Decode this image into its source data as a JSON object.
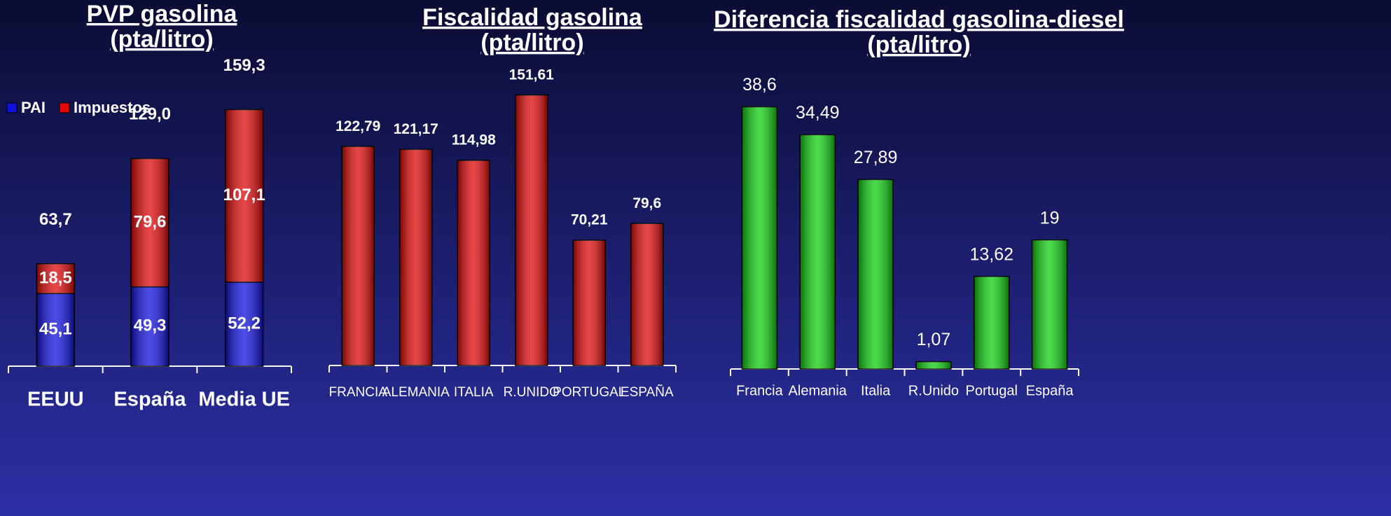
{
  "chart_data": [
    {
      "type": "stacked_bar",
      "title": "PVP gasolina",
      "subtitle": "(pta/litro)",
      "categories": [
        "EEUU",
        "España",
        "Media UE"
      ],
      "series": [
        {
          "name": "PAI",
          "color": "#1010e0",
          "values": [
            45.1,
            49.3,
            52.2
          ],
          "value_labels": [
            "45,1",
            "49,3",
            "52,2"
          ]
        },
        {
          "name": "Impuestos",
          "color": "#e00808",
          "values": [
            18.5,
            79.6,
            107.1
          ],
          "value_labels": [
            "18,5",
            "79,6",
            "107,1"
          ]
        }
      ],
      "totals": [
        63.7,
        129.0,
        159.3
      ],
      "total_labels": [
        "63,7",
        "129,0",
        "159,3"
      ],
      "ylim": [
        0,
        170
      ],
      "legend": "upper left"
    },
    {
      "type": "bar",
      "title": "Fiscalidad gasolina",
      "subtitle": "(pta/litro)",
      "categories": [
        "FRANCIA",
        "ALEMANIA",
        "ITALIA",
        "R.UNIDO",
        "PORTUGAL",
        "ESPAÑA"
      ],
      "values": [
        122.79,
        121.17,
        114.98,
        151.61,
        70.21,
        79.6
      ],
      "value_labels": [
        "122,79",
        "121,17",
        "114,98",
        "151,61",
        "70,21",
        "79,6"
      ],
      "color": "#e00808",
      "ylim": [
        0,
        170
      ]
    },
    {
      "type": "bar",
      "title": "Diferencia fiscalidad gasolina-diesel",
      "subtitle": "(pta/litro)",
      "categories": [
        "Francia",
        "Alemania",
        "Italia",
        "R.Unido",
        "Portugal",
        "España"
      ],
      "values": [
        38.6,
        34.49,
        27.89,
        1.07,
        13.62,
        19
      ],
      "value_labels": [
        "38,6",
        "34,49",
        "27,89",
        "1,07",
        "13,62",
        "19"
      ],
      "color": "#10d010",
      "ylim": [
        0,
        40
      ]
    }
  ]
}
